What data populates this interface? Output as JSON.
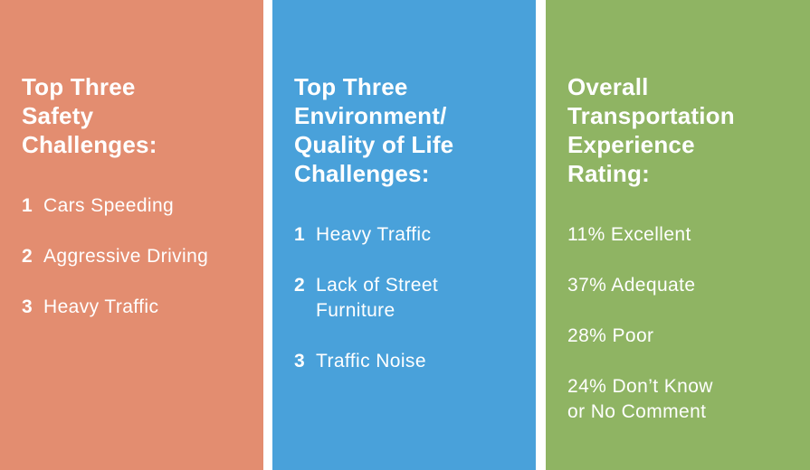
{
  "panels": [
    {
      "heading": "Top Three\nSafety\nChallenges:",
      "items": [
        {
          "num": "1",
          "text": "Cars Speeding"
        },
        {
          "num": "2",
          "text": "Aggressive Driving"
        },
        {
          "num": "3",
          "text": "Heavy Traffic"
        }
      ]
    },
    {
      "heading": "Top Three\nEnvironment/\nQuality of Life\nChallenges:",
      "items": [
        {
          "num": "1",
          "text": "Heavy Traffic"
        },
        {
          "num": "2",
          "text": "Lack of Street\nFurniture"
        },
        {
          "num": "3",
          "text": "Traffic Noise"
        }
      ]
    },
    {
      "heading": "Overall\nTransportation\nExperience\nRating:",
      "items": [
        {
          "text": "11% Excellent"
        },
        {
          "text": "37% Adequate"
        },
        {
          "text": "28% Poor"
        },
        {
          "text": "24% Don’t Know\nor No Comment"
        }
      ]
    }
  ],
  "colors": {
    "safety_panel": "#e38d70",
    "environment_panel": "#49a1da",
    "rating_panel": "#8fb463"
  }
}
